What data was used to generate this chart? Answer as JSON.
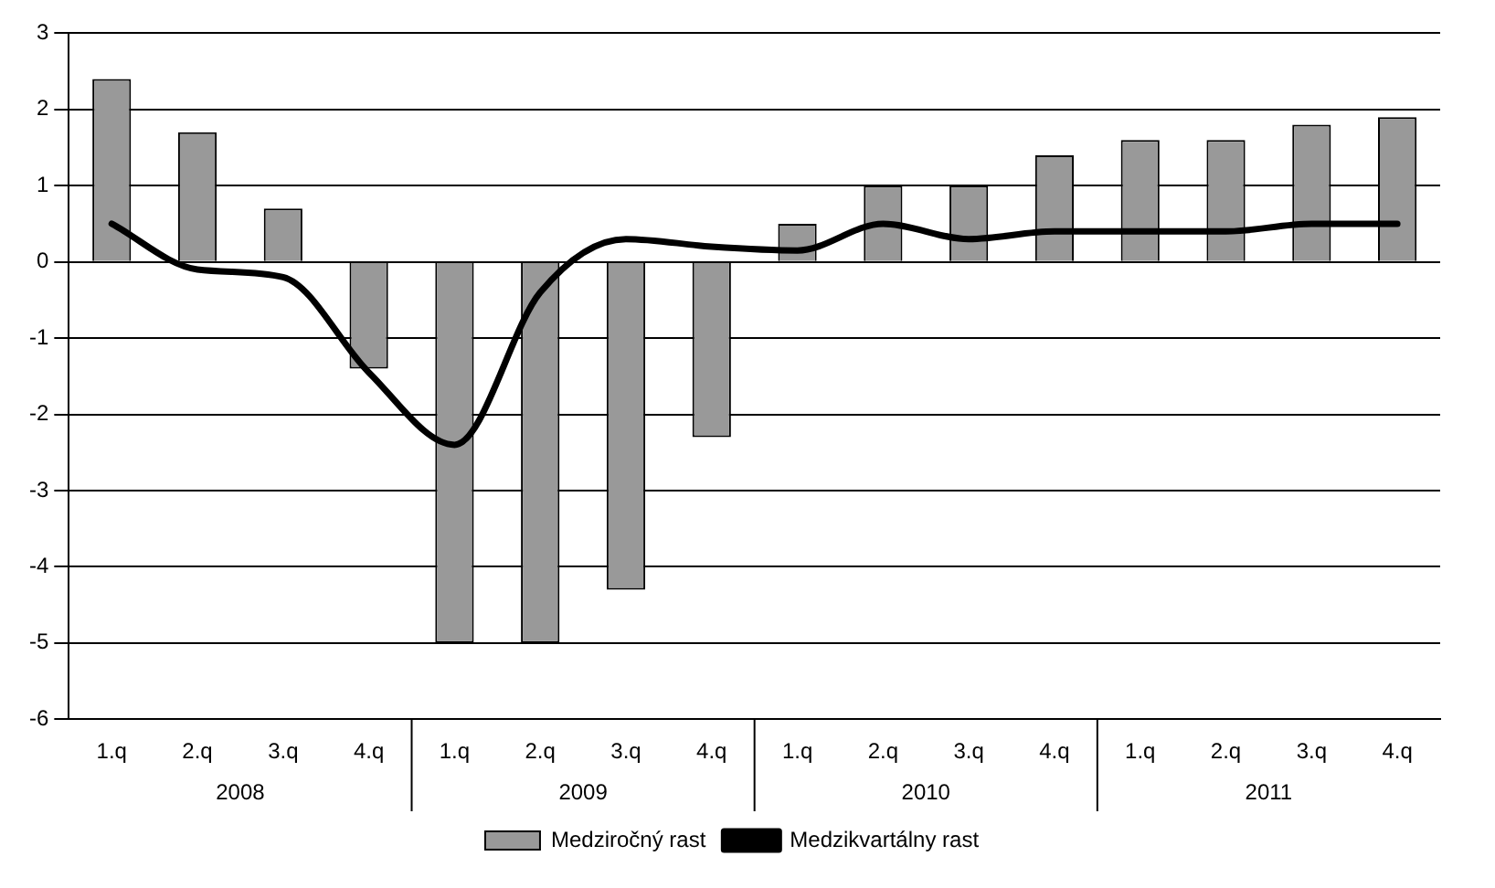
{
  "chart_data": {
    "type": "bar",
    "categories": [
      "1.q",
      "2.q",
      "3.q",
      "4.q",
      "1.q",
      "2.q",
      "3.q",
      "4.q",
      "1.q",
      "2.q",
      "3.q",
      "4.q",
      "1.q",
      "2.q",
      "3.q",
      "4.q"
    ],
    "series": [
      {
        "name": "Medziročný rast",
        "color": "#999999",
        "values": [
          2.4,
          1.7,
          0.7,
          -1.4,
          -5,
          -5,
          -4.3,
          -2.3,
          0.5,
          1.0,
          1.0,
          1.4,
          1.6,
          1.6,
          1.8,
          1.9
        ]
      },
      {
        "name": "Medzikvartálny rast",
        "type": "line",
        "color": "#000000",
        "values": [
          0.5,
          -0.1,
          -0.2,
          -1.45,
          -2.4,
          -0.4,
          0.3,
          0.2,
          0.15,
          0.5,
          0.3,
          0.4,
          0.4,
          0.4,
          0.5,
          0.5
        ]
      }
    ],
    "ylim": [
      -6,
      3
    ],
    "yticks": [
      -6,
      -5,
      -4,
      -3,
      -2,
      -1,
      0,
      1,
      2,
      3
    ],
    "grid": "y",
    "legend": "bottom",
    "marker": "none",
    "line_style": "solid",
    "annotations": [
      "2008",
      "2009",
      "2010",
      "2011"
    ]
  }
}
